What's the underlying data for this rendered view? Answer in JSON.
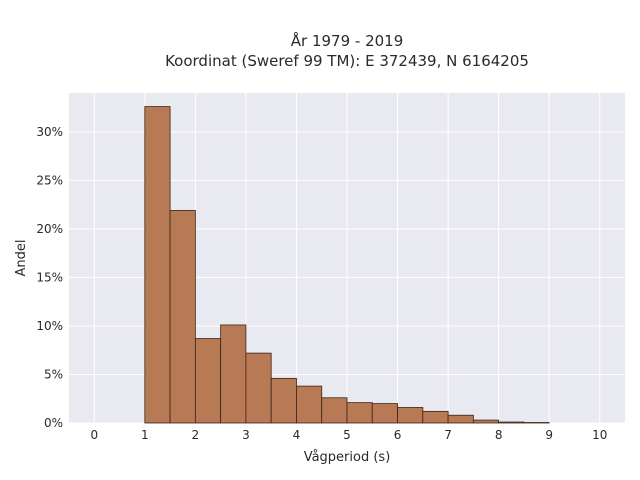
{
  "chart_data": {
    "type": "bar",
    "title_lines": [
      "År 1979 - 2019",
      "Koordinat (Sweref 99 TM): E 372439, N 6164205"
    ],
    "xlabel": "Vågperiod (s)",
    "ylabel": "Andel",
    "xlim": [
      -0.5,
      10.5
    ],
    "ylim": [
      0,
      34
    ],
    "x_ticks": [
      0,
      1,
      2,
      3,
      4,
      5,
      6,
      7,
      8,
      9,
      10
    ],
    "y_ticks": [
      0,
      5,
      10,
      15,
      20,
      25,
      30
    ],
    "y_tick_labels": [
      "0%",
      "5%",
      "10%",
      "15%",
      "20%",
      "25%",
      "30%"
    ],
    "bin_width": 0.5,
    "bins": [
      {
        "x0": 1.0,
        "value": 32.6
      },
      {
        "x0": 1.5,
        "value": 21.9
      },
      {
        "x0": 2.0,
        "value": 8.7
      },
      {
        "x0": 2.5,
        "value": 10.1
      },
      {
        "x0": 3.0,
        "value": 7.2
      },
      {
        "x0": 3.5,
        "value": 4.6
      },
      {
        "x0": 4.0,
        "value": 3.8
      },
      {
        "x0": 4.5,
        "value": 2.6
      },
      {
        "x0": 5.0,
        "value": 2.1
      },
      {
        "x0": 5.5,
        "value": 2.0
      },
      {
        "x0": 6.0,
        "value": 1.6
      },
      {
        "x0": 6.5,
        "value": 1.2
      },
      {
        "x0": 7.0,
        "value": 0.8
      },
      {
        "x0": 7.5,
        "value": 0.3
      },
      {
        "x0": 8.0,
        "value": 0.1
      },
      {
        "x0": 8.5,
        "value": 0.05
      }
    ],
    "grid": true,
    "bar_color": "#b87a54",
    "background_color": "#e9e9f1"
  }
}
